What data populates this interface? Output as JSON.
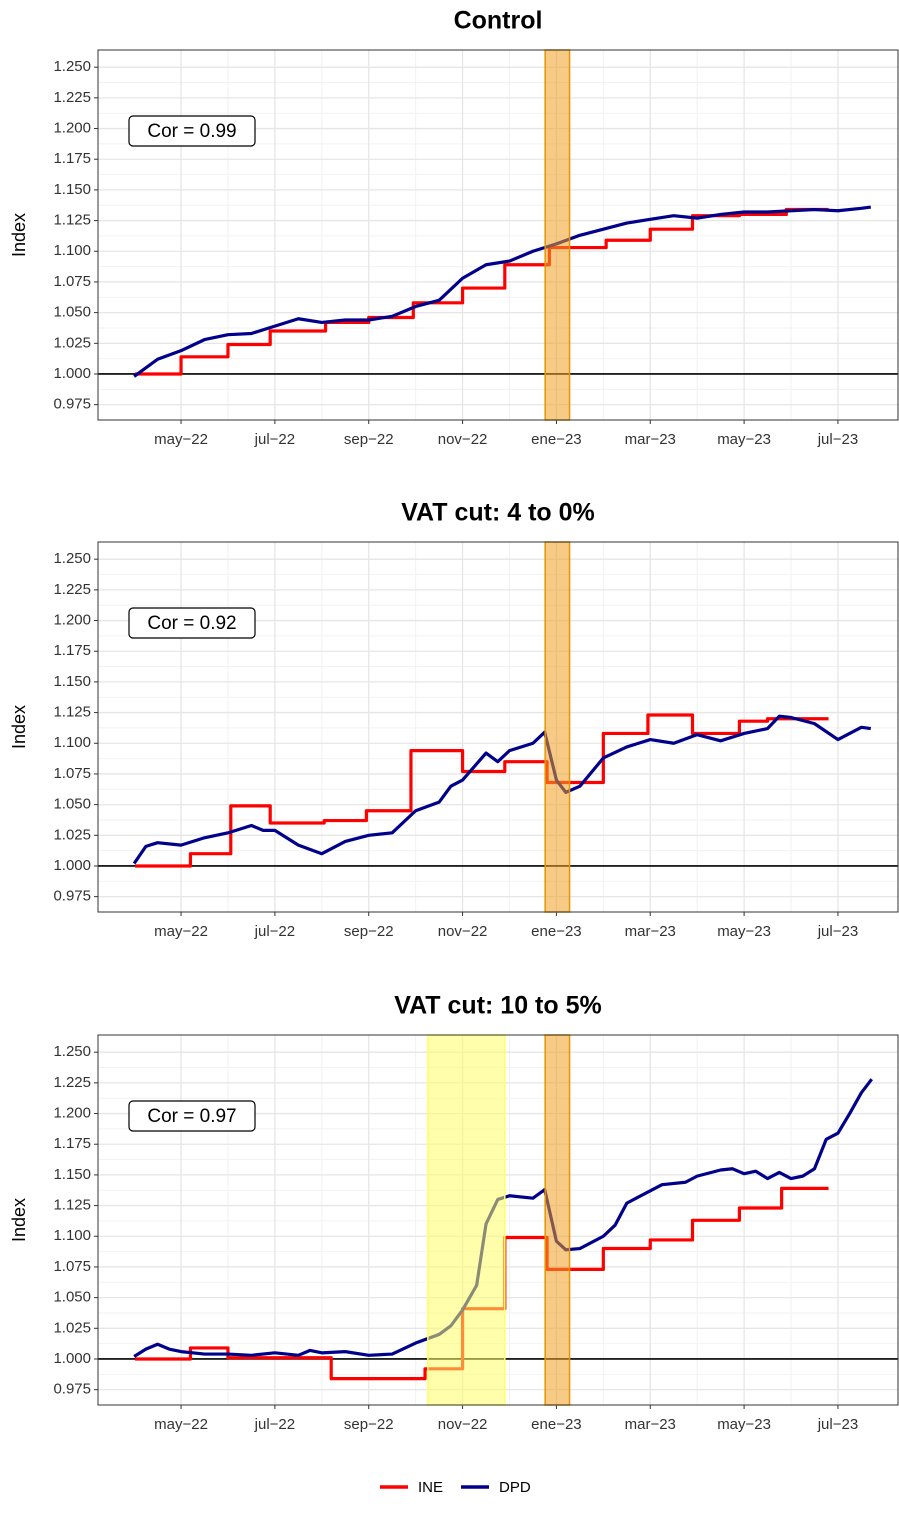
{
  "chart_data": [
    {
      "type": "line",
      "title": "Control",
      "ylabel": "Index",
      "annotation": "Cor = 0.99",
      "xlim": [
        2.23,
        19.28
      ],
      "ylim": [
        0.9625,
        1.264
      ],
      "xticks": [
        {
          "value": 4,
          "label": "may−22"
        },
        {
          "value": 6,
          "label": "jul−22"
        },
        {
          "value": 8,
          "label": "sep−22"
        },
        {
          "value": 10,
          "label": "nov−22"
        },
        {
          "value": 12,
          "label": "ene−23"
        },
        {
          "value": 14,
          "label": "mar−23"
        },
        {
          "value": 16,
          "label": "may−23"
        },
        {
          "value": 18,
          "label": "jul−23"
        }
      ],
      "yticks": [
        {
          "value": 0.975,
          "label": "0.975"
        },
        {
          "value": 1.0,
          "label": "1.000"
        },
        {
          "value": 1.025,
          "label": "1.025"
        },
        {
          "value": 1.05,
          "label": "1.050"
        },
        {
          "value": 1.075,
          "label": "1.075"
        },
        {
          "value": 1.1,
          "label": "1.100"
        },
        {
          "value": 1.125,
          "label": "1.125"
        },
        {
          "value": 1.15,
          "label": "1.150"
        },
        {
          "value": 1.175,
          "label": "1.175"
        },
        {
          "value": 1.2,
          "label": "1.200"
        },
        {
          "value": 1.225,
          "label": "1.225"
        },
        {
          "value": 1.25,
          "label": "1.250"
        }
      ],
      "grid": true,
      "hline": 1,
      "bands": [
        {
          "xmin": 11.76,
          "xmax": 12.28,
          "color": "#f0a020",
          "edge": "#e69500"
        }
      ],
      "series": [
        {
          "name": "INE",
          "color": "#ff0000",
          "step": true,
          "x": [
            3.02,
            4.0,
            5.0,
            5.9,
            7.08,
            8.0,
            8.95,
            10.0,
            10.9,
            11.85,
            13.06,
            14.0,
            14.9,
            15.9,
            16.9,
            17.8
          ],
          "values": [
            1.0,
            1.014,
            1.024,
            1.035,
            1.042,
            1.046,
            1.058,
            1.07,
            1.089,
            1.103,
            1.109,
            1.118,
            1.129,
            1.13,
            1.134,
            1.134
          ]
        },
        {
          "name": "DPD",
          "color": "#00008b",
          "x": [
            3.0,
            3.5,
            4.0,
            4.5,
            5.0,
            5.5,
            6.0,
            6.5,
            7.0,
            7.5,
            8.0,
            8.5,
            9.0,
            9.5,
            10.0,
            10.5,
            11.0,
            11.5,
            12.0,
            12.5,
            13.0,
            13.5,
            14.0,
            14.5,
            15.0,
            15.5,
            16.0,
            16.5,
            17.0,
            17.5,
            18.0,
            18.5,
            18.7
          ],
          "values": [
            0.998,
            1.012,
            1.019,
            1.028,
            1.032,
            1.033,
            1.039,
            1.045,
            1.042,
            1.044,
            1.044,
            1.047,
            1.055,
            1.06,
            1.078,
            1.089,
            1.092,
            1.1,
            1.106,
            1.113,
            1.118,
            1.123,
            1.126,
            1.129,
            1.127,
            1.13,
            1.132,
            1.132,
            1.133,
            1.134,
            1.133,
            1.135,
            1.136
          ]
        }
      ]
    },
    {
      "type": "line",
      "title": "VAT cut: 4 to 0%",
      "ylabel": "Index",
      "annotation": "Cor = 0.92",
      "xlim": [
        2.23,
        19.28
      ],
      "ylim": [
        0.9625,
        1.264
      ],
      "xticks": [
        {
          "value": 4,
          "label": "may−22"
        },
        {
          "value": 6,
          "label": "jul−22"
        },
        {
          "value": 8,
          "label": "sep−22"
        },
        {
          "value": 10,
          "label": "nov−22"
        },
        {
          "value": 12,
          "label": "ene−23"
        },
        {
          "value": 14,
          "label": "mar−23"
        },
        {
          "value": 16,
          "label": "may−23"
        },
        {
          "value": 18,
          "label": "jul−23"
        }
      ],
      "yticks": [
        {
          "value": 0.975,
          "label": "0.975"
        },
        {
          "value": 1.0,
          "label": "1.000"
        },
        {
          "value": 1.025,
          "label": "1.025"
        },
        {
          "value": 1.05,
          "label": "1.050"
        },
        {
          "value": 1.075,
          "label": "1.075"
        },
        {
          "value": 1.1,
          "label": "1.100"
        },
        {
          "value": 1.125,
          "label": "1.125"
        },
        {
          "value": 1.15,
          "label": "1.150"
        },
        {
          "value": 1.175,
          "label": "1.175"
        },
        {
          "value": 1.2,
          "label": "1.200"
        },
        {
          "value": 1.225,
          "label": "1.225"
        },
        {
          "value": 1.25,
          "label": "1.250"
        }
      ],
      "grid": true,
      "hline": 1,
      "bands": [
        {
          "xmin": 11.76,
          "xmax": 12.28,
          "color": "#f0a020",
          "edge": "#e69500"
        }
      ],
      "series": [
        {
          "name": "INE",
          "color": "#ff0000",
          "step": true,
          "x": [
            3.02,
            4.2,
            5.06,
            5.9,
            7.05,
            7.95,
            8.9,
            10.0,
            10.9,
            11.8,
            13.0,
            13.95,
            14.9,
            15.9,
            16.5,
            17.8
          ],
          "values": [
            1.0,
            1.01,
            1.049,
            1.035,
            1.037,
            1.045,
            1.094,
            1.077,
            1.085,
            1.068,
            1.108,
            1.123,
            1.108,
            1.118,
            1.12,
            1.12
          ]
        },
        {
          "name": "DPD",
          "color": "#00008b",
          "x": [
            3.0,
            3.25,
            3.5,
            4.0,
            4.5,
            5.0,
            5.5,
            5.75,
            6.0,
            6.5,
            7.0,
            7.5,
            8.0,
            8.5,
            9.0,
            9.5,
            9.75,
            10.0,
            10.5,
            10.75,
            11.0,
            11.5,
            11.75,
            12.0,
            12.2,
            12.5,
            13.0,
            13.5,
            14.0,
            14.5,
            15.0,
            15.5,
            16.0,
            16.5,
            16.75,
            17.0,
            17.5,
            18.0,
            18.5,
            18.7
          ],
          "values": [
            1.002,
            1.016,
            1.019,
            1.017,
            1.023,
            1.027,
            1.033,
            1.029,
            1.029,
            1.017,
            1.01,
            1.02,
            1.025,
            1.027,
            1.045,
            1.052,
            1.065,
            1.07,
            1.092,
            1.085,
            1.094,
            1.1,
            1.109,
            1.07,
            1.06,
            1.065,
            1.088,
            1.097,
            1.103,
            1.1,
            1.107,
            1.102,
            1.108,
            1.112,
            1.122,
            1.121,
            1.116,
            1.103,
            1.113,
            1.112
          ]
        }
      ]
    },
    {
      "type": "line",
      "title": "VAT cut: 10 to 5%",
      "ylabel": "Index",
      "annotation": "Cor = 0.97",
      "xlim": [
        2.23,
        19.28
      ],
      "ylim": [
        0.9625,
        1.264
      ],
      "xticks": [
        {
          "value": 4,
          "label": "may−22"
        },
        {
          "value": 6,
          "label": "jul−22"
        },
        {
          "value": 8,
          "label": "sep−22"
        },
        {
          "value": 10,
          "label": "nov−22"
        },
        {
          "value": 12,
          "label": "ene−23"
        },
        {
          "value": 14,
          "label": "mar−23"
        },
        {
          "value": 16,
          "label": "may−23"
        },
        {
          "value": 18,
          "label": "jul−23"
        }
      ],
      "yticks": [
        {
          "value": 0.975,
          "label": "0.975"
        },
        {
          "value": 1.0,
          "label": "1.000"
        },
        {
          "value": 1.025,
          "label": "1.025"
        },
        {
          "value": 1.05,
          "label": "1.050"
        },
        {
          "value": 1.075,
          "label": "1.075"
        },
        {
          "value": 1.1,
          "label": "1.100"
        },
        {
          "value": 1.125,
          "label": "1.125"
        },
        {
          "value": 1.15,
          "label": "1.150"
        },
        {
          "value": 1.175,
          "label": "1.175"
        },
        {
          "value": 1.2,
          "label": "1.200"
        },
        {
          "value": 1.225,
          "label": "1.225"
        },
        {
          "value": 1.25,
          "label": "1.250"
        }
      ],
      "grid": true,
      "hline": 1,
      "bands": [
        {
          "xmin": 9.26,
          "xmax": 10.9,
          "color": "#ffff66",
          "edge": "#ffff66"
        },
        {
          "xmin": 11.76,
          "xmax": 12.28,
          "color": "#f0a020",
          "edge": "#e69500"
        }
      ],
      "series": [
        {
          "name": "INE",
          "color": "#ff0000",
          "step": true,
          "x": [
            3.02,
            4.2,
            5.0,
            7.2,
            9.2,
            10.0,
            10.9,
            11.8,
            13.0,
            14.0,
            14.9,
            15.9,
            16.8,
            17.8
          ],
          "values": [
            1.0,
            1.009,
            1.001,
            0.984,
            0.992,
            1.041,
            1.099,
            1.073,
            1.09,
            1.097,
            1.113,
            1.123,
            1.139,
            1.139
          ]
        },
        {
          "name": "DPD",
          "color": "#00008b",
          "x": [
            3.0,
            3.25,
            3.5,
            3.75,
            4.0,
            4.5,
            5.0,
            5.5,
            6.0,
            6.5,
            6.75,
            7.0,
            7.5,
            8.0,
            8.5,
            9.0,
            9.5,
            9.75,
            10.0,
            10.3,
            10.5,
            10.75,
            11.0,
            11.5,
            11.75,
            12.0,
            12.2,
            12.5,
            13.0,
            13.25,
            13.5,
            14.0,
            14.25,
            14.75,
            15.0,
            15.5,
            15.75,
            16.0,
            16.25,
            16.5,
            16.75,
            17.0,
            17.25,
            17.5,
            17.75,
            18.0,
            18.25,
            18.5,
            18.72
          ],
          "values": [
            1.002,
            1.008,
            1.012,
            1.008,
            1.006,
            1.004,
            1.004,
            1.003,
            1.005,
            1.003,
            1.007,
            1.005,
            1.006,
            1.003,
            1.004,
            1.013,
            1.02,
            1.027,
            1.04,
            1.06,
            1.11,
            1.13,
            1.133,
            1.131,
            1.138,
            1.096,
            1.089,
            1.09,
            1.1,
            1.109,
            1.127,
            1.137,
            1.142,
            1.144,
            1.149,
            1.154,
            1.155,
            1.151,
            1.153,
            1.147,
            1.152,
            1.147,
            1.149,
            1.155,
            1.179,
            1.184,
            1.2,
            1.217,
            1.228
          ]
        }
      ]
    }
  ]
}
